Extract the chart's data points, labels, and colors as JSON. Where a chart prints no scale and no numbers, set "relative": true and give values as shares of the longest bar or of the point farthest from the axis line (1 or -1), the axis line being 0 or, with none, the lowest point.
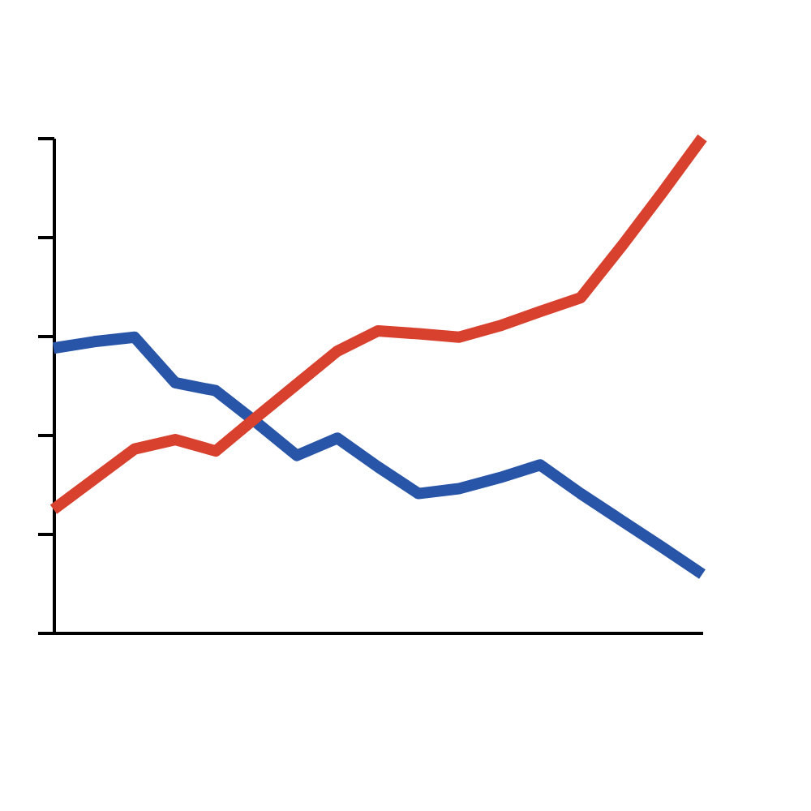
{
  "chart_data": {
    "type": "line",
    "relative": true,
    "categories": [
      null,
      null,
      null,
      null,
      null,
      null,
      null,
      null,
      null,
      null,
      null,
      null,
      null,
      null,
      null,
      null,
      null
    ],
    "series": [
      {
        "color": "#2855a8",
        "values": [
          0.575,
          0.588,
          0.597,
          0.505,
          0.489,
          0.425,
          0.358,
          0.393,
          0.335,
          0.281,
          0.291,
          0.313,
          0.339,
          0.281,
          0.227,
          0.173,
          0.118
        ]
      },
      {
        "color": "#d9412f",
        "values": [
          0.249,
          0.31,
          0.371,
          0.39,
          0.367,
          0.435,
          0.502,
          0.569,
          0.61,
          0.604,
          0.597,
          0.62,
          0.649,
          0.677,
          0.78,
          0.888,
          1
        ]
      }
    ],
    "grid": false,
    "legend": false,
    "marker": "none",
    "line_style": "solid"
  }
}
